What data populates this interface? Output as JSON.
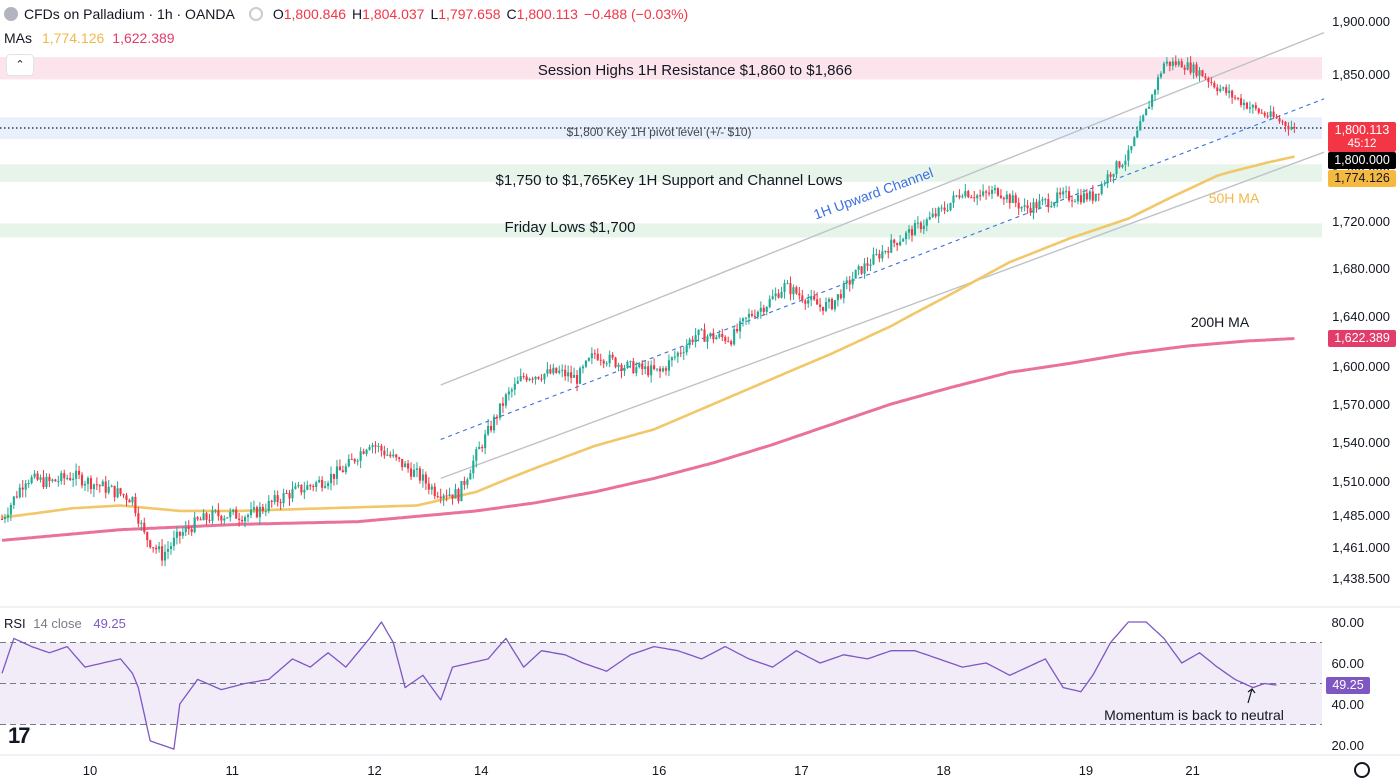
{
  "header": {
    "symbol": "CFDs on Palladium · 1h · OANDA",
    "o_label": "O",
    "o_value": "1,800.846",
    "h_label": "H",
    "h_value": "1,804.037",
    "l_label": "L",
    "l_value": "1,797.658",
    "c_label": "C",
    "c_value": "1,800.113",
    "change": "−0.488 (−0.03%)"
  },
  "mas": {
    "label": "MAs",
    "ma50_value": "1,774.126",
    "ma200_value": "1,622.389"
  },
  "collapse_label": "⌃",
  "rsi_header": {
    "label": "RSI",
    "params": "14 close",
    "value": "49.25"
  },
  "badges": {
    "last_price": "1,800.113",
    "countdown": "45:12",
    "pivot": "1,800.000",
    "ma50": "1,774.126",
    "ma200": "1,622.389",
    "rsi": "49.25"
  },
  "colors": {
    "up": "#22ab94",
    "down": "#f23645",
    "ma50": "#f2c76a",
    "ma200": "#e9719b",
    "rsi": "#7e57c2"
  },
  "icons": {
    "logo": "tradingview-logo-icon",
    "settings": "gear-icon",
    "collapse": "chevron-up-icon"
  },
  "chart_data": [
    {
      "type": "candlestick",
      "title": "CFDs on Palladium · 1h · OANDA",
      "y_ticks": [
        "1,900.000",
        "1,850.000",
        "1,800.000",
        "1,760.000",
        "1,720.000",
        "1,680.000",
        "1,640.000",
        "1,600.000",
        "1,570.000",
        "1,540.000",
        "1,510.000",
        "1,485.000",
        "1,461.000",
        "1,438.500"
      ],
      "x_ticks": [
        "10",
        "11",
        "12",
        "14",
        "16",
        "17",
        "18",
        "19",
        "21"
      ],
      "x_tick_positions": [
        0,
        48,
        96,
        132,
        192,
        240,
        288,
        336,
        372
      ],
      "bar_count": 445,
      "close_path": [
        [
          0,
          1482
        ],
        [
          8,
          1512
        ],
        [
          16,
          1509
        ],
        [
          24,
          1514
        ],
        [
          36,
          1504
        ],
        [
          44,
          1497
        ],
        [
          48,
          1470
        ],
        [
          54,
          1455
        ],
        [
          60,
          1470
        ],
        [
          66,
          1480
        ],
        [
          72,
          1485
        ],
        [
          84,
          1485
        ],
        [
          96,
          1500
        ],
        [
          108,
          1510
        ],
        [
          116,
          1520
        ],
        [
          124,
          1540
        ],
        [
          140,
          1515
        ],
        [
          146,
          1503
        ],
        [
          154,
          1500
        ],
        [
          160,
          1530
        ],
        [
          170,
          1575
        ],
        [
          176,
          1592
        ],
        [
          188,
          1595
        ],
        [
          194,
          1590
        ],
        [
          200,
          1610
        ],
        [
          210,
          1600
        ],
        [
          222,
          1595
        ],
        [
          228,
          1610
        ],
        [
          234,
          1625
        ],
        [
          246,
          1622
        ],
        [
          252,
          1640
        ],
        [
          258,
          1650
        ],
        [
          264,
          1665
        ],
        [
          276,
          1648
        ],
        [
          280,
          1650
        ],
        [
          288,
          1675
        ],
        [
          300,
          1700
        ],
        [
          312,
          1720
        ],
        [
          318,
          1730
        ],
        [
          324,
          1745
        ],
        [
          330,
          1740
        ],
        [
          336,
          1745
        ],
        [
          345,
          1730
        ],
        [
          358,
          1740
        ],
        [
          368,
          1740
        ],
        [
          374,
          1760
        ],
        [
          380,
          1775
        ],
        [
          386,
          1815
        ],
        [
          392,
          1860
        ],
        [
          398,
          1860
        ],
        [
          404,
          1852
        ],
        [
          410,
          1838
        ],
        [
          416,
          1828
        ],
        [
          424,
          1815
        ],
        [
          430,
          1808
        ],
        [
          436,
          1800
        ]
      ],
      "ma50_path": [
        [
          0,
          1483
        ],
        [
          24,
          1490
        ],
        [
          40,
          1492
        ],
        [
          60,
          1488
        ],
        [
          80,
          1488
        ],
        [
          110,
          1490
        ],
        [
          140,
          1492
        ],
        [
          148,
          1496
        ],
        [
          160,
          1502
        ],
        [
          180,
          1520
        ],
        [
          200,
          1537
        ],
        [
          220,
          1550
        ],
        [
          240,
          1570
        ],
        [
          260,
          1590
        ],
        [
          280,
          1610
        ],
        [
          300,
          1632
        ],
        [
          320,
          1658
        ],
        [
          340,
          1685
        ],
        [
          360,
          1705
        ],
        [
          380,
          1722
        ],
        [
          395,
          1740
        ],
        [
          410,
          1757
        ],
        [
          426,
          1768
        ],
        [
          436,
          1774
        ]
      ],
      "ma200_path": [
        [
          0,
          1466
        ],
        [
          40,
          1474
        ],
        [
          80,
          1478
        ],
        [
          120,
          1480
        ],
        [
          140,
          1484
        ],
        [
          160,
          1488
        ],
        [
          180,
          1494
        ],
        [
          200,
          1502
        ],
        [
          220,
          1512
        ],
        [
          240,
          1524
        ],
        [
          260,
          1538
        ],
        [
          280,
          1554
        ],
        [
          300,
          1570
        ],
        [
          320,
          1583
        ],
        [
          340,
          1595
        ],
        [
          360,
          1602
        ],
        [
          380,
          1610
        ],
        [
          400,
          1616
        ],
        [
          420,
          1620
        ],
        [
          436,
          1622
        ]
      ],
      "channel": {
        "upper": [
          [
            148,
            1585
          ],
          [
            446,
            1889
          ]
        ],
        "mid": [
          [
            148,
            1542
          ],
          [
            446,
            1827
          ]
        ],
        "lower": [
          [
            148,
            1512
          ],
          [
            446,
            1778
          ]
        ]
      },
      "annotations": [
        {
          "kind": "zone",
          "label": "Session Highs 1H Resistance $1,860 to $1,866",
          "low": 1845,
          "high": 1866,
          "color": "#fce4ec"
        },
        {
          "kind": "zone",
          "label": "$1,800 Key 1H pivot level (+/- $10)",
          "low": 1790,
          "high": 1810,
          "color": "#e8f1fb"
        },
        {
          "kind": "zone",
          "label": "$1,750 to $1,765Key 1H Support and Channel Lows",
          "low": 1752,
          "high": 1767,
          "color": "#e6f4ea"
        },
        {
          "kind": "zone",
          "label": "Friday Lows $1,700",
          "low": 1706,
          "high": 1718,
          "color": "#e6f4ea"
        },
        {
          "kind": "text",
          "label": "1H Upward Channel"
        },
        {
          "kind": "text",
          "label": "50H MA"
        },
        {
          "kind": "text",
          "label": "200H MA"
        }
      ],
      "last_close": 1800.113,
      "pivot": 1800.0
    },
    {
      "type": "line",
      "title": "RSI 14 close",
      "y_ticks": [
        "80.00",
        "60.00",
        "40.00",
        "20.00"
      ],
      "bands": {
        "upper": 70,
        "middle": 50,
        "lower": 30
      },
      "rsi_path": [
        [
          0,
          55
        ],
        [
          4,
          72
        ],
        [
          10,
          68
        ],
        [
          16,
          65
        ],
        [
          22,
          68
        ],
        [
          28,
          58
        ],
        [
          34,
          60
        ],
        [
          40,
          62
        ],
        [
          44,
          55
        ],
        [
          46,
          48
        ],
        [
          48,
          35
        ],
        [
          50,
          22
        ],
        [
          54,
          20
        ],
        [
          58,
          18
        ],
        [
          60,
          40
        ],
        [
          66,
          52
        ],
        [
          74,
          47
        ],
        [
          82,
          50
        ],
        [
          90,
          52
        ],
        [
          98,
          62
        ],
        [
          104,
          58
        ],
        [
          110,
          65
        ],
        [
          116,
          58
        ],
        [
          120,
          65
        ],
        [
          124,
          72
        ],
        [
          128,
          80
        ],
        [
          132,
          70
        ],
        [
          136,
          48
        ],
        [
          142,
          54
        ],
        [
          148,
          42
        ],
        [
          152,
          58
        ],
        [
          158,
          60
        ],
        [
          164,
          62
        ],
        [
          170,
          72
        ],
        [
          176,
          58
        ],
        [
          182,
          66
        ],
        [
          190,
          64
        ],
        [
          196,
          60
        ],
        [
          204,
          56
        ],
        [
          212,
          64
        ],
        [
          220,
          68
        ],
        [
          228,
          66
        ],
        [
          236,
          62
        ],
        [
          244,
          68
        ],
        [
          252,
          62
        ],
        [
          260,
          58
        ],
        [
          268,
          66
        ],
        [
          276,
          60
        ],
        [
          284,
          64
        ],
        [
          292,
          62
        ],
        [
          300,
          66
        ],
        [
          308,
          66
        ],
        [
          316,
          62
        ],
        [
          324,
          58
        ],
        [
          332,
          60
        ],
        [
          340,
          54
        ],
        [
          346,
          58
        ],
        [
          352,
          62
        ],
        [
          358,
          48
        ],
        [
          364,
          46
        ],
        [
          368,
          54
        ],
        [
          374,
          70
        ],
        [
          380,
          80
        ],
        [
          386,
          80
        ],
        [
          392,
          72
        ],
        [
          398,
          60
        ],
        [
          404,
          65
        ],
        [
          410,
          58
        ],
        [
          416,
          52
        ],
        [
          422,
          48
        ],
        [
          426,
          50
        ],
        [
          430,
          49.25
        ]
      ],
      "last_value": 49.25,
      "annotation": "Momentum is back to neutral"
    }
  ]
}
